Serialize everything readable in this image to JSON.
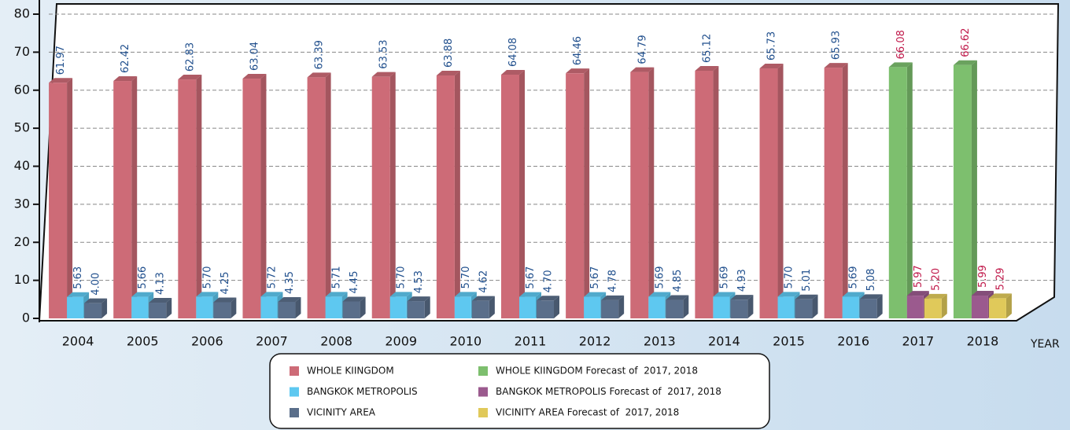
{
  "chart_data": {
    "type": "bar",
    "x_label": "YEAR",
    "categories": [
      "2004",
      "2005",
      "2006",
      "2007",
      "2008",
      "2009",
      "2010",
      "2011",
      "2012",
      "2013",
      "2014",
      "2015",
      "2016",
      "2017",
      "2018"
    ],
    "ylim": [
      0,
      80
    ],
    "yticks": [
      0,
      10,
      20,
      30,
      40,
      50,
      60,
      70,
      80
    ],
    "grid": true,
    "series": [
      {
        "name": "WHOLE KIINGDOM",
        "color": "#cd6b77",
        "values": [
          61.97,
          62.42,
          62.83,
          63.04,
          63.39,
          63.53,
          63.88,
          64.08,
          64.46,
          64.79,
          65.12,
          65.73,
          65.93,
          null,
          null
        ],
        "value_labels": [
          "61.97",
          "62.42",
          "62.83",
          "63.04",
          "63.39",
          "63.53",
          "63.88",
          "64.08",
          "64.46",
          "64.79",
          "65.12",
          "65.73",
          "65.93",
          null,
          null
        ]
      },
      {
        "name": "BANGKOK METROPOLIS",
        "color": "#5ec8f0",
        "values": [
          5.63,
          5.66,
          5.7,
          5.72,
          5.71,
          5.7,
          5.7,
          5.67,
          5.67,
          5.69,
          5.69,
          5.7,
          5.69,
          null,
          null
        ],
        "value_labels": [
          "5.63",
          "5.66",
          "5.70",
          "5.72",
          "5.71",
          "5.70",
          "5.70",
          "5.67",
          "5.67",
          "5.69",
          "5.69",
          "5.70",
          "5.69",
          null,
          null
        ]
      },
      {
        "name": "VICINITY AREA",
        "color": "#5a6e8a",
        "values": [
          4.0,
          4.13,
          4.25,
          4.35,
          4.45,
          4.53,
          4.62,
          4.7,
          4.78,
          4.85,
          4.93,
          5.01,
          5.08,
          null,
          null
        ],
        "value_labels": [
          "4.00",
          "4.13",
          "4.25",
          "4.35",
          "4.45",
          "4.53",
          "4.62",
          "4.70",
          "4.78",
          "4.85",
          "4.93",
          "5.01",
          "5.08",
          null,
          null
        ]
      },
      {
        "name": "WHOLE KIINGDOM Forecast of  2017, 2018",
        "color": "#7dbf6e",
        "values": [
          null,
          null,
          null,
          null,
          null,
          null,
          null,
          null,
          null,
          null,
          null,
          null,
          null,
          66.08,
          66.62
        ],
        "value_labels": [
          null,
          null,
          null,
          null,
          null,
          null,
          null,
          null,
          null,
          null,
          null,
          null,
          null,
          "66.08",
          "66.62"
        ]
      },
      {
        "name": "BANGKOK METROPOLIS Forecast of  2017, 2018",
        "color": "#9b5a8e",
        "values": [
          null,
          null,
          null,
          null,
          null,
          null,
          null,
          null,
          null,
          null,
          null,
          null,
          null,
          5.97,
          5.99
        ],
        "value_labels": [
          null,
          null,
          null,
          null,
          null,
          null,
          null,
          null,
          null,
          null,
          null,
          null,
          null,
          "5.97",
          "5.99"
        ]
      },
      {
        "name": "VICINITY AREA Forecast of  2017, 2018",
        "color": "#e0c95a",
        "values": [
          null,
          null,
          null,
          null,
          null,
          null,
          null,
          null,
          null,
          null,
          null,
          null,
          null,
          5.2,
          5.29
        ],
        "value_labels": [
          null,
          null,
          null,
          null,
          null,
          null,
          null,
          null,
          null,
          null,
          null,
          null,
          null,
          "5.20",
          "5.29"
        ]
      }
    ]
  }
}
